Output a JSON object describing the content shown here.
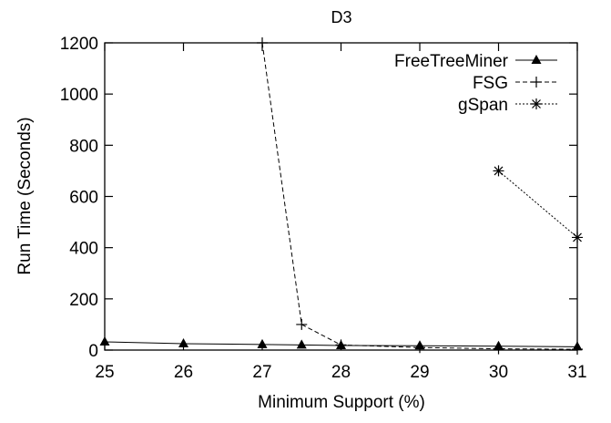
{
  "chart_data": {
    "type": "line",
    "title": "D3",
    "xlabel": "Minimum Support (%)",
    "ylabel": "Run Time (Seconds)",
    "xlim": [
      25,
      31
    ],
    "ylim": [
      0,
      1200
    ],
    "xticks": [
      25,
      26,
      27,
      28,
      29,
      30,
      31
    ],
    "yticks": [
      0,
      200,
      400,
      600,
      800,
      1000,
      1200
    ],
    "grid": false,
    "legend_position": "top-right",
    "series": [
      {
        "name": "FreeTreeMiner",
        "style": "solid",
        "marker": "filled-triangle",
        "x": [
          25,
          26,
          27,
          27.5,
          28,
          29,
          30,
          31
        ],
        "y": [
          32,
          25,
          22,
          20,
          18,
          17,
          15,
          13
        ]
      },
      {
        "name": "FSG",
        "style": "dashed",
        "marker": "plus",
        "x": [
          27,
          27.5,
          28,
          29,
          30,
          31
        ],
        "y": [
          1200,
          100,
          20,
          10,
          5,
          3
        ]
      },
      {
        "name": "gSpan",
        "style": "dotted",
        "marker": "asterisk",
        "x": [
          30,
          31
        ],
        "y": [
          700,
          440
        ]
      }
    ]
  },
  "colors": {
    "axis": "#000000",
    "background": "#ffffff",
    "ghost_text": "#ececec"
  }
}
